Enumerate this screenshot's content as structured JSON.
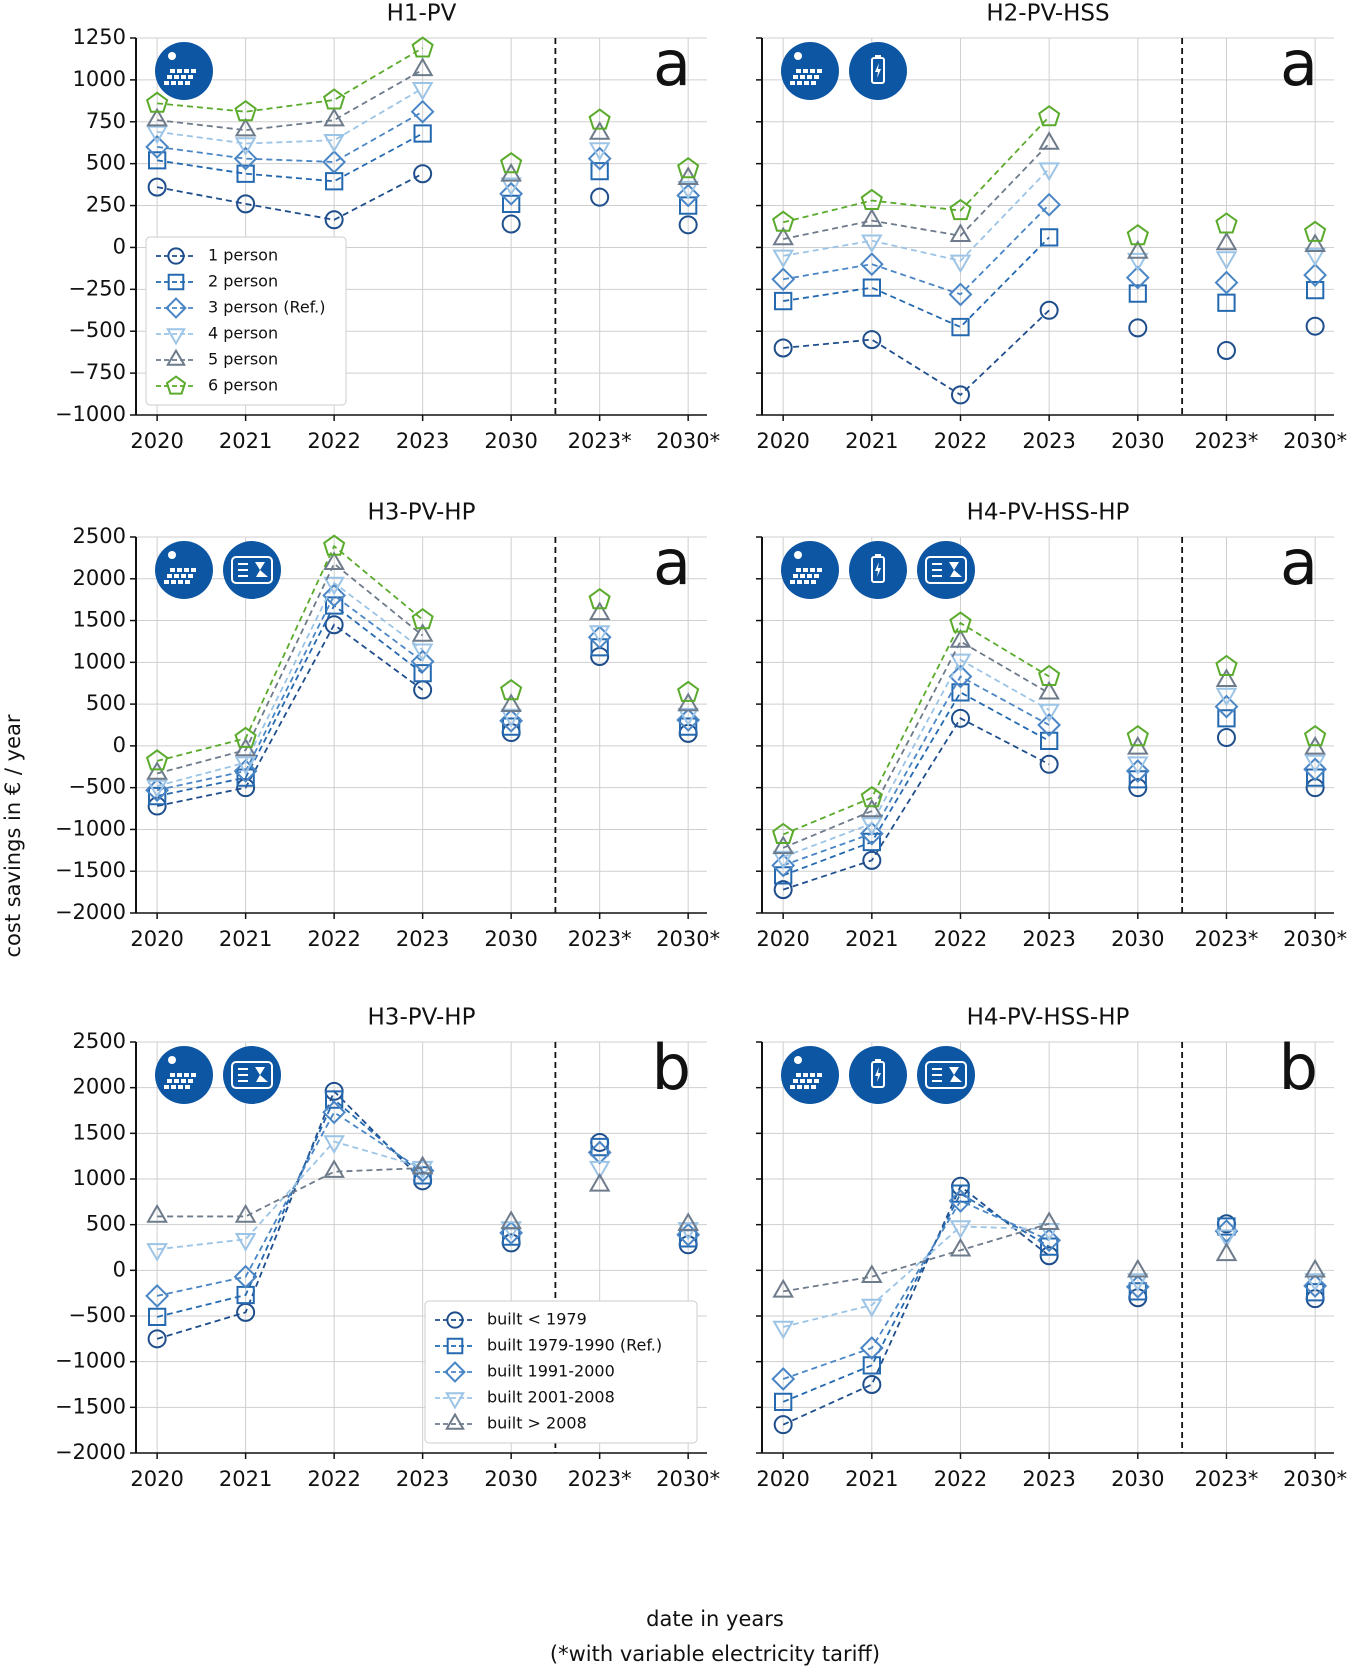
{
  "figure": {
    "ylabel": "cost savings in € / year",
    "xlabel": "date in years",
    "note": "(*with variable electricity tariff)"
  },
  "chart_data": [
    {
      "type": "line",
      "title": "H1-PV",
      "panel_label": "a",
      "icons": [
        "pv"
      ],
      "legend": true,
      "legend_position": "lower left",
      "grid": true,
      "categories": [
        "2020",
        "2021",
        "2022",
        "2023",
        "2030",
        "2023*",
        "2030*"
      ],
      "ylim": [
        -1000,
        1250
      ],
      "yticks": [
        {
          "value": -1000,
          "label": "−1000"
        },
        {
          "value": -750,
          "label": "−750"
        },
        {
          "value": -500,
          "label": "−500"
        },
        {
          "value": -250,
          "label": "−250"
        },
        0,
        250,
        500,
        750,
        1000,
        1250
      ],
      "series": [
        {
          "name": "1 person",
          "color": "#1f4e8c",
          "marker": "circle",
          "values": [
            360,
            260,
            165,
            440,
            140,
            300,
            135
          ]
        },
        {
          "name": "2 person",
          "color": "#2469b0",
          "marker": "square",
          "values": [
            520,
            440,
            395,
            680,
            260,
            455,
            250
          ]
        },
        {
          "name": "3 person (Ref.)",
          "color": "#4a86c5",
          "marker": "diamond",
          "values": [
            600,
            530,
            510,
            810,
            320,
            530,
            310
          ]
        },
        {
          "name": "4 person",
          "color": "#9cc4e6",
          "marker": "triangle-down",
          "values": [
            690,
            620,
            640,
            950,
            380,
            590,
            360
          ]
        },
        {
          "name": "5 person",
          "color": "#6e7b8b",
          "marker": "triangle-up",
          "values": [
            760,
            700,
            760,
            1060,
            430,
            680,
            410
          ]
        },
        {
          "name": "6 person",
          "color": "#5aab2c",
          "marker": "pentagon",
          "values": [
            860,
            810,
            880,
            1190,
            500,
            760,
            470
          ]
        }
      ]
    },
    {
      "type": "line",
      "title": "H2-PV-HSS",
      "panel_label": "a",
      "icons": [
        "pv",
        "hss"
      ],
      "legend": false,
      "grid": true,
      "categories": [
        "2020",
        "2021",
        "2022",
        "2023",
        "2030",
        "2023*",
        "2030*"
      ],
      "ylim": [
        -1000,
        1250
      ],
      "yticks": [
        -1000,
        -750,
        -500,
        -250,
        0,
        250,
        500,
        750,
        1000,
        1250
      ],
      "series": [
        {
          "name": "1 person",
          "color": "#1f4e8c",
          "marker": "circle",
          "values": [
            -600,
            -550,
            -880,
            -375,
            -480,
            -615,
            -470
          ]
        },
        {
          "name": "2 person",
          "color": "#2469b0",
          "marker": "square",
          "values": [
            -320,
            -240,
            -475,
            60,
            -275,
            -330,
            -255
          ]
        },
        {
          "name": "3 person (Ref.)",
          "color": "#4a86c5",
          "marker": "diamond",
          "values": [
            -190,
            -100,
            -280,
            255,
            -180,
            -210,
            -165
          ]
        },
        {
          "name": "4 person",
          "color": "#9cc4e6",
          "marker": "triangle-down",
          "values": [
            -50,
            40,
            -80,
            470,
            -70,
            -60,
            -40
          ]
        },
        {
          "name": "5 person",
          "color": "#6e7b8b",
          "marker": "triangle-up",
          "values": [
            50,
            160,
            70,
            620,
            -30,
            20,
            10
          ]
        },
        {
          "name": "6 person",
          "color": "#5aab2c",
          "marker": "pentagon",
          "values": [
            150,
            280,
            220,
            780,
            70,
            140,
            90
          ]
        }
      ]
    },
    {
      "type": "line",
      "title": "H3-PV-HP",
      "panel_label": "a",
      "icons": [
        "pv",
        "hp"
      ],
      "legend": false,
      "grid": true,
      "categories": [
        "2020",
        "2021",
        "2022",
        "2023",
        "2030",
        "2023*",
        "2030*"
      ],
      "ylim": [
        -2000,
        2500
      ],
      "yticks": [
        {
          "value": -2000,
          "label": "−2000"
        },
        {
          "value": -1500,
          "label": "−1500"
        },
        {
          "value": -1000,
          "label": "−1000"
        },
        {
          "value": -500,
          "label": "−500"
        },
        0,
        500,
        1000,
        1500,
        2000,
        2500
      ],
      "series": [
        {
          "name": "1 person",
          "color": "#1f4e8c",
          "marker": "circle",
          "values": [
            -720,
            -500,
            1450,
            670,
            160,
            1070,
            150
          ]
        },
        {
          "name": "2 person",
          "color": "#2469b0",
          "marker": "square",
          "values": [
            -600,
            -380,
            1680,
            870,
            230,
            1180,
            230
          ]
        },
        {
          "name": "3 person (Ref.)",
          "color": "#4a86c5",
          "marker": "diamond",
          "values": [
            -530,
            -300,
            1800,
            1010,
            300,
            1300,
            310
          ]
        },
        {
          "name": "4 person",
          "color": "#9cc4e6",
          "marker": "triangle-down",
          "values": [
            -480,
            -200,
            1950,
            1150,
            370,
            1370,
            380
          ]
        },
        {
          "name": "5 person",
          "color": "#6e7b8b",
          "marker": "triangle-up",
          "values": [
            -330,
            -50,
            2180,
            1320,
            480,
            1580,
            490
          ]
        },
        {
          "name": "6 person",
          "color": "#5aab2c",
          "marker": "pentagon",
          "values": [
            -180,
            90,
            2390,
            1510,
            660,
            1750,
            640
          ]
        }
      ]
    },
    {
      "type": "line",
      "title": "H4-PV-HSS-HP",
      "panel_label": "a",
      "icons": [
        "pv",
        "hss",
        "hp"
      ],
      "legend": false,
      "grid": true,
      "categories": [
        "2020",
        "2021",
        "2022",
        "2023",
        "2030",
        "2023*",
        "2030*"
      ],
      "ylim": [
        -2000,
        2500
      ],
      "yticks": [
        -2000,
        -1500,
        -1000,
        -500,
        0,
        500,
        1000,
        1500,
        2000,
        2500
      ],
      "series": [
        {
          "name": "1 person",
          "color": "#1f4e8c",
          "marker": "circle",
          "values": [
            -1720,
            -1370,
            330,
            -220,
            -500,
            100,
            -500
          ]
        },
        {
          "name": "2 person",
          "color": "#2469b0",
          "marker": "square",
          "values": [
            -1550,
            -1150,
            640,
            60,
            -400,
            330,
            -380
          ]
        },
        {
          "name": "3 person (Ref.)",
          "color": "#4a86c5",
          "marker": "diamond",
          "values": [
            -1430,
            -1050,
            830,
            250,
            -300,
            470,
            -280
          ]
        },
        {
          "name": "4 person",
          "color": "#9cc4e6",
          "marker": "triangle-down",
          "values": [
            -1330,
            -930,
            1030,
            430,
            -200,
            620,
            -180
          ]
        },
        {
          "name": "5 person",
          "color": "#6e7b8b",
          "marker": "triangle-up",
          "values": [
            -1220,
            -780,
            1250,
            630,
            -30,
            780,
            -30
          ]
        },
        {
          "name": "6 person",
          "color": "#5aab2c",
          "marker": "pentagon",
          "values": [
            -1060,
            -620,
            1470,
            830,
            110,
            950,
            110
          ]
        }
      ]
    },
    {
      "type": "line",
      "title": "H3-PV-HP",
      "panel_label": "b",
      "icons": [
        "pv",
        "hp"
      ],
      "legend": true,
      "legend_position": "lower right",
      "grid": true,
      "categories": [
        "2020",
        "2021",
        "2022",
        "2023",
        "2030",
        "2023*",
        "2030*"
      ],
      "ylim": [
        -2000,
        2500
      ],
      "yticks": [
        {
          "value": -2000,
          "label": "−2000"
        },
        {
          "value": -1500,
          "label": "−1500"
        },
        {
          "value": -1000,
          "label": "−1000"
        },
        {
          "value": -500,
          "label": "−500"
        },
        0,
        500,
        1000,
        1500,
        2000,
        2500
      ],
      "series": [
        {
          "name": "built < 1979",
          "color": "#1f4e8c",
          "marker": "circle",
          "values": [
            -750,
            -460,
            1960,
            980,
            300,
            1400,
            280
          ]
        },
        {
          "name": "built 1979-1990 (Ref.)",
          "color": "#2469b0",
          "marker": "square",
          "values": [
            -510,
            -270,
            1870,
            1040,
            370,
            1350,
            350
          ]
        },
        {
          "name": "built 1991-2000",
          "color": "#4a86c5",
          "marker": "diamond",
          "values": [
            -280,
            -70,
            1730,
            1090,
            410,
            1290,
            390
          ]
        },
        {
          "name": "built 2001-2008",
          "color": "#9cc4e6",
          "marker": "triangle-down",
          "values": [
            230,
            340,
            1410,
            1130,
            470,
            1130,
            460
          ]
        },
        {
          "name": "built > 2008",
          "color": "#6e7b8b",
          "marker": "triangle-up",
          "values": [
            590,
            590,
            1080,
            1120,
            520,
            930,
            500
          ]
        }
      ]
    },
    {
      "type": "line",
      "title": "H4-PV-HSS-HP",
      "panel_label": "b",
      "icons": [
        "pv",
        "hss",
        "hp"
      ],
      "legend": false,
      "grid": true,
      "categories": [
        "2020",
        "2021",
        "2022",
        "2023",
        "2030",
        "2023*",
        "2030*"
      ],
      "ylim": [
        -2000,
        2500
      ],
      "yticks": [
        -2000,
        -1500,
        -1000,
        -500,
        0,
        500,
        1000,
        1500,
        2000,
        2500
      ],
      "series": [
        {
          "name": "built < 1979",
          "color": "#1f4e8c",
          "marker": "circle",
          "values": [
            -1690,
            -1250,
            920,
            160,
            -300,
            510,
            -310
          ]
        },
        {
          "name": "built 1979-1990 (Ref.)",
          "color": "#2469b0",
          "marker": "square",
          "values": [
            -1440,
            -1040,
            840,
            260,
            -230,
            480,
            -240
          ]
        },
        {
          "name": "built 1991-2000",
          "color": "#4a86c5",
          "marker": "diamond",
          "values": [
            -1190,
            -850,
            760,
            330,
            -180,
            430,
            -170
          ]
        },
        {
          "name": "built 2001-2008",
          "color": "#9cc4e6",
          "marker": "triangle-down",
          "values": [
            -620,
            -380,
            480,
            450,
            -100,
            380,
            -100
          ]
        },
        {
          "name": "built > 2008",
          "color": "#6e7b8b",
          "marker": "triangle-up",
          "values": [
            -230,
            -70,
            220,
            510,
            -10,
            170,
            -10
          ]
        }
      ]
    }
  ]
}
